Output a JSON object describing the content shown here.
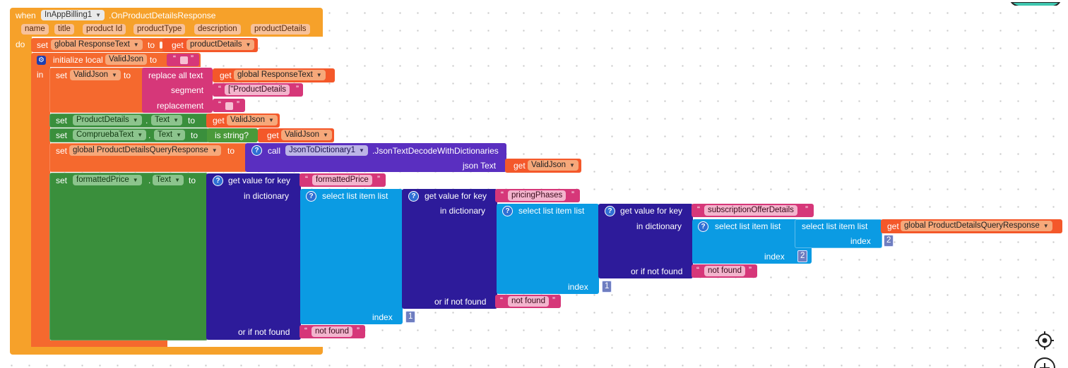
{
  "event": {
    "when": "when",
    "component": "InAppBilling1",
    "event_name": ".OnProductDetailsResponse",
    "params": [
      "name",
      "title",
      "product Id",
      "productType",
      "description",
      "productDetails"
    ],
    "do": "do"
  },
  "row1": {
    "set": "set",
    "var": "global ResponseText",
    "to": "to",
    "get": "get",
    "get_var": "productDetails"
  },
  "local": {
    "label": "initialize local",
    "name": "ValidJson",
    "to": "to",
    "in": "in"
  },
  "replace": {
    "set": "set",
    "var": "ValidJson",
    "to": "to",
    "fn": "replace all text",
    "get": "get",
    "get_var": "global ResponseText",
    "segment_label": "segment",
    "segment_value": "[\"ProductDetails",
    "replacement_label": "replacement"
  },
  "row_pd": {
    "set": "set",
    "comp": "ProductDetails",
    "dot": ".",
    "prop": "Text",
    "to": "to",
    "get": "get",
    "get_var": "ValidJson"
  },
  "row_cmp": {
    "set": "set",
    "comp": "CompruebaText",
    "dot": ".",
    "prop": "Text",
    "to": "to",
    "fn": "is string?",
    "get": "get",
    "get_var": "ValidJson"
  },
  "row_json": {
    "set": "set",
    "var": "global ProductDetailsQueryResponse",
    "to": "to",
    "call": "call",
    "comp": "JsonToDictionary1",
    "method": ".JsonTextDecodeWithDictionaries",
    "arg_label": "json Text",
    "get": "get",
    "get_var": "ValidJson"
  },
  "row_fp": {
    "set": "set",
    "comp": "formattedPrice",
    "dot": ".",
    "prop": "Text",
    "to": "to",
    "gv": "get value for key",
    "key1": "formattedPrice",
    "in_dict": "in dictionary",
    "sel": "select list item  list",
    "key2": "pricingPhases",
    "key3": "subscriptionOfferDetails",
    "get": "get",
    "get_var": "global ProductDetailsQueryResponse",
    "index": "index",
    "idx_a": "2",
    "idx_b": "2",
    "idx_c": "1",
    "idx_d": "1",
    "not_found_label": "or if not found",
    "not_found": "not found"
  },
  "icons": {
    "target": "crosshair-icon",
    "zoom": "zoom-in-icon",
    "gear": "gear-icon"
  }
}
